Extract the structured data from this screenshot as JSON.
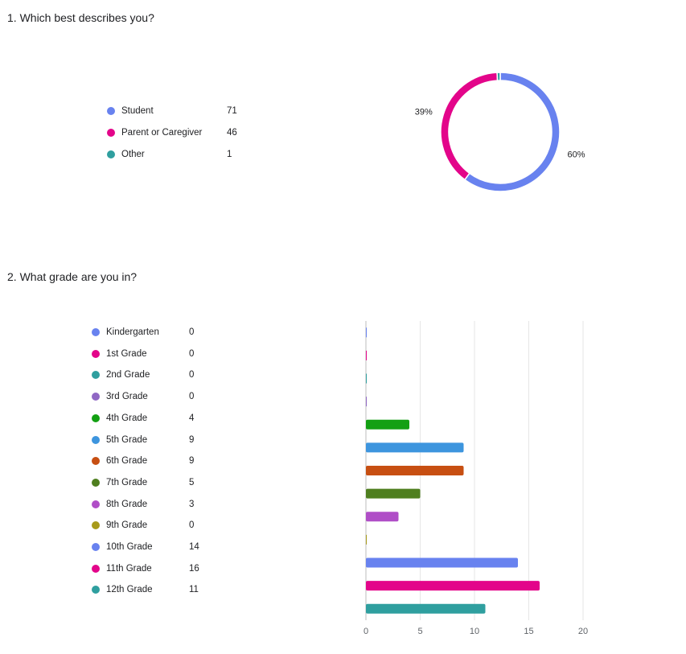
{
  "questions": [
    {
      "title": "1. Which best describes you?",
      "chart_data": {
        "type": "pie",
        "donut": true,
        "categories": [
          "Student",
          "Parent or Caregiver",
          "Other"
        ],
        "values": [
          71,
          46,
          1
        ],
        "colors": [
          "#6882ef",
          "#e3058a",
          "#2f9f9f"
        ],
        "slice_labels": [
          "60%",
          "39%",
          ""
        ],
        "legend_position": "left"
      }
    },
    {
      "title": "2. What grade are you in?",
      "chart_data": {
        "type": "bar",
        "orientation": "horizontal",
        "categories": [
          "Kindergarten",
          "1st Grade",
          "2nd Grade",
          "3rd Grade",
          "4th Grade",
          "5th Grade",
          "6th Grade",
          "7th Grade",
          "8th Grade",
          "9th Grade",
          "10th Grade",
          "11th Grade",
          "12th Grade"
        ],
        "values": [
          0,
          0,
          0,
          0,
          4,
          9,
          9,
          5,
          3,
          0,
          14,
          16,
          11
        ],
        "colors": [
          "#6882ef",
          "#e3058a",
          "#2f9f9f",
          "#9068c4",
          "#13a013",
          "#3d95de",
          "#c74f12",
          "#4f7f1f",
          "#b04ec7",
          "#a89a1a",
          "#6882ef",
          "#e3058a",
          "#2f9f9f"
        ],
        "xlim": [
          0,
          20
        ],
        "xticks": [
          "0",
          "5",
          "10",
          "15",
          "20"
        ],
        "grid": true,
        "legend_position": "left"
      }
    }
  ]
}
